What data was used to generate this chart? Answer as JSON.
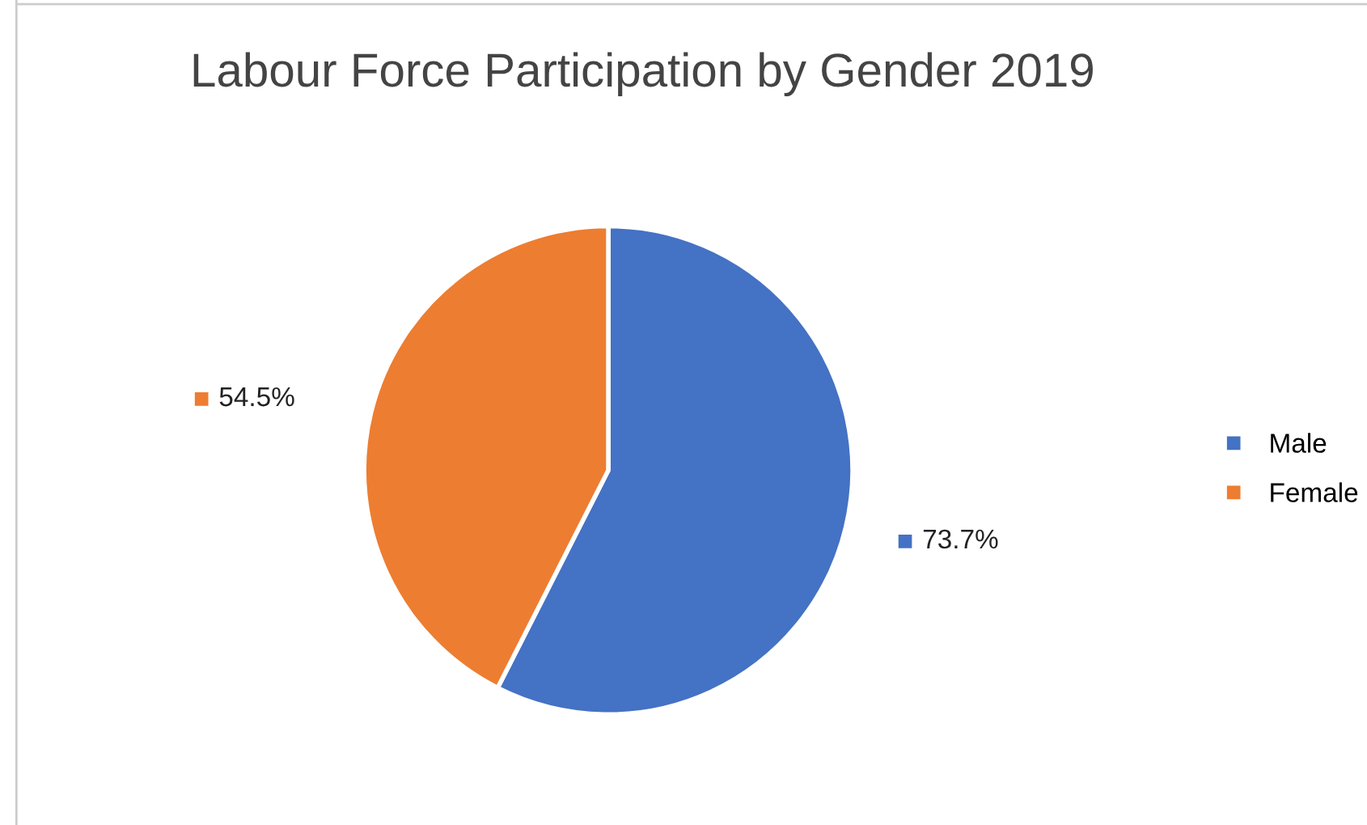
{
  "chart_data": {
    "type": "pie",
    "title": "Labour Force Participation by Gender 2019",
    "categories": [
      "Male",
      "Female"
    ],
    "values": [
      73.7,
      54.5
    ],
    "colors": [
      "#4472c4",
      "#ed7d31"
    ],
    "value_labels": [
      "73.7%",
      "54.5%"
    ],
    "legend": "right"
  }
}
